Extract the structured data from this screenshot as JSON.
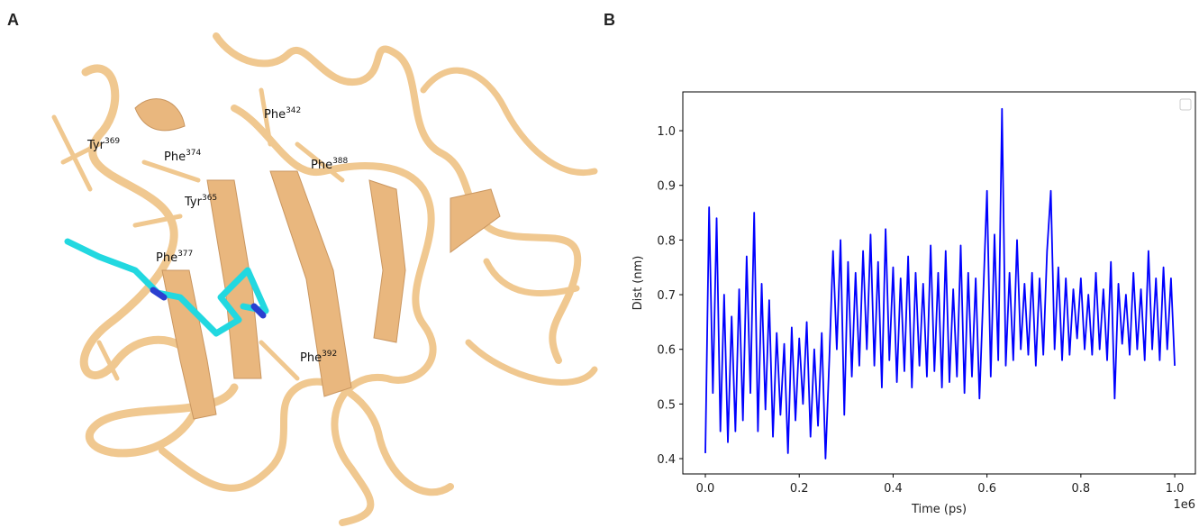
{
  "panel_a": {
    "label": "A",
    "residues": [
      {
        "name": "Tyr",
        "number": "369"
      },
      {
        "name": "Phe",
        "number": "374"
      },
      {
        "name": "Phe",
        "number": "342"
      },
      {
        "name": "Phe",
        "number": "388"
      },
      {
        "name": "Tyr",
        "number": "365"
      },
      {
        "name": "Phe",
        "number": "377"
      },
      {
        "name": "Phe",
        "number": "392"
      }
    ]
  },
  "chart_data": {
    "type": "line",
    "panel_label": "B",
    "x_label": "Time (ps)",
    "y_label": "Dist (nm)",
    "x_offset_label": "1e6",
    "xlim": [
      -48000,
      1044000
    ],
    "ylim": [
      0.372,
      1.071
    ],
    "xticks": [
      {
        "value": 0,
        "label": "0.0"
      },
      {
        "value": 200000,
        "label": "0.2"
      },
      {
        "value": 400000,
        "label": "0.4"
      },
      {
        "value": 600000,
        "label": "0.6"
      },
      {
        "value": 800000,
        "label": "0.8"
      },
      {
        "value": 1000000,
        "label": "1.0"
      }
    ],
    "yticks": [
      0.4,
      0.5,
      0.6,
      0.7,
      0.8,
      0.9,
      {
        "value": 1,
        "label": "1.0"
      }
    ],
    "x": [
      0,
      8000,
      16000,
      24000,
      32000,
      40000,
      48000,
      56000,
      64000,
      72000,
      80000,
      88000,
      96000,
      104000,
      112000,
      120000,
      128000,
      136000,
      144000,
      152000,
      160000,
      168000,
      176000,
      184000,
      192000,
      200000,
      208000,
      216000,
      224000,
      232000,
      240000,
      248000,
      256000,
      264000,
      272000,
      280000,
      288000,
      296000,
      304000,
      312000,
      320000,
      328000,
      336000,
      344000,
      352000,
      360000,
      368000,
      376000,
      384000,
      392000,
      400000,
      408000,
      416000,
      424000,
      432000,
      440000,
      448000,
      456000,
      464000,
      472000,
      480000,
      488000,
      496000,
      504000,
      512000,
      520000,
      528000,
      536000,
      544000,
      552000,
      560000,
      568000,
      576000,
      584000,
      592000,
      600000,
      608000,
      616000,
      624000,
      632000,
      640000,
      648000,
      656000,
      664000,
      672000,
      680000,
      688000,
      696000,
      704000,
      712000,
      720000,
      728000,
      736000,
      744000,
      752000,
      760000,
      768000,
      776000,
      784000,
      792000,
      800000,
      808000,
      816000,
      824000,
      832000,
      840000,
      848000,
      856000,
      864000,
      872000,
      880000,
      888000,
      896000,
      904000,
      912000,
      920000,
      928000,
      936000,
      944000,
      952000,
      960000,
      968000,
      976000,
      984000,
      992000,
      1000000
    ],
    "series": [
      {
        "color": "#0000ff",
        "values": [
          0.41,
          0.86,
          0.52,
          0.84,
          0.45,
          0.7,
          0.43,
          0.66,
          0.45,
          0.71,
          0.47,
          0.77,
          0.52,
          0.85,
          0.45,
          0.72,
          0.49,
          0.69,
          0.44,
          0.63,
          0.48,
          0.61,
          0.41,
          0.64,
          0.47,
          0.62,
          0.5,
          0.65,
          0.44,
          0.6,
          0.46,
          0.63,
          0.4,
          0.58,
          0.78,
          0.6,
          0.8,
          0.48,
          0.76,
          0.55,
          0.74,
          0.57,
          0.78,
          0.6,
          0.81,
          0.57,
          0.76,
          0.53,
          0.82,
          0.58,
          0.75,
          0.54,
          0.73,
          0.56,
          0.77,
          0.53,
          0.74,
          0.57,
          0.72,
          0.55,
          0.79,
          0.56,
          0.74,
          0.53,
          0.78,
          0.54,
          0.71,
          0.55,
          0.79,
          0.52,
          0.74,
          0.55,
          0.73,
          0.51,
          0.7,
          0.89,
          0.55,
          0.81,
          0.58,
          1.04,
          0.57,
          0.74,
          0.58,
          0.8,
          0.6,
          0.72,
          0.59,
          0.74,
          0.57,
          0.73,
          0.59,
          0.78,
          0.89,
          0.6,
          0.75,
          0.58,
          0.73,
          0.59,
          0.71,
          0.62,
          0.73,
          0.6,
          0.7,
          0.59,
          0.74,
          0.6,
          0.71,
          0.58,
          0.76,
          0.51,
          0.72,
          0.61,
          0.7,
          0.59,
          0.74,
          0.6,
          0.71,
          0.58,
          0.78,
          0.6,
          0.73,
          0.58,
          0.75,
          0.6,
          0.73,
          0.57
        ]
      }
    ]
  }
}
